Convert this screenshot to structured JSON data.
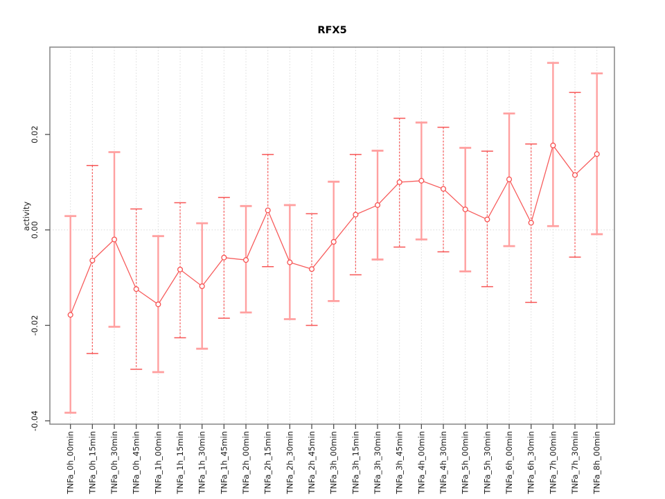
{
  "chart_data": {
    "type": "line",
    "title": "RFX5",
    "ylabel": "activity",
    "xlabel": "",
    "legend_position": "none",
    "grid": "dotted vertical line at every category; dotted horizontal line at y=0",
    "ylim": [
      -0.0407,
      0.0383
    ],
    "yticks": [
      0.02,
      0.0,
      -0.02,
      -0.04
    ],
    "ytick_labels": [
      "0.02",
      "0.00",
      "-0.02",
      "-0.04"
    ],
    "categories": [
      "TNFa_0h_00min",
      "TNFa_0h_15min",
      "TNFa_0h_30min",
      "TNFa_0h_45min",
      "TNFa_1h_00min",
      "TNFa_1h_15min",
      "TNFa_1h_30min",
      "TNFa_1h_45min",
      "TNFa_2h_00min",
      "TNFa_2h_15min",
      "TNFa_2h_30min",
      "TNFa_2h_45min",
      "TNFa_3h_00min",
      "TNFa_3h_15min",
      "TNFa_3h_30min",
      "TNFa_3h_45min",
      "TNFa_4h_00min",
      "TNFa_4h_30min",
      "TNFa_5h_00min",
      "TNFa_5h_30min",
      "TNFa_6h_00min",
      "TNFa_6h_30min",
      "TNFa_7h_00min",
      "TNFa_7h_30min",
      "TNFa_8h_00min"
    ],
    "series": [
      {
        "name": "RFX5 activity",
        "marker": "open-circle",
        "values": [
          -0.0178,
          -0.0064,
          -0.002,
          -0.0124,
          -0.0156,
          -0.0083,
          -0.0118,
          -0.0058,
          -0.0063,
          0.0041,
          -0.0068,
          -0.0082,
          -0.0025,
          0.0032,
          0.0052,
          0.01,
          0.0103,
          0.0086,
          0.0043,
          0.0022,
          0.0106,
          0.0015,
          0.0177,
          0.0115,
          0.0159
        ],
        "error_lower": [
          -0.0383,
          -0.0259,
          -0.0203,
          -0.0292,
          -0.0298,
          -0.0226,
          -0.0249,
          -0.0185,
          -0.0173,
          -0.0077,
          -0.0187,
          -0.02,
          -0.0149,
          -0.0094,
          -0.0062,
          -0.0036,
          -0.002,
          -0.0046,
          -0.0087,
          -0.0119,
          -0.0034,
          -0.0152,
          0.0008,
          -0.0057,
          -0.0009
        ],
        "error_upper": [
          0.0029,
          0.0135,
          0.0163,
          0.0044,
          -0.0013,
          0.0057,
          0.0014,
          0.0068,
          0.005,
          0.0158,
          0.0052,
          0.0034,
          0.0101,
          0.0158,
          0.0166,
          0.0234,
          0.0225,
          0.0215,
          0.0172,
          0.0165,
          0.0244,
          0.018,
          0.035,
          0.0288,
          0.0328
        ]
      }
    ],
    "colors": {
      "series_line": "#f75c5c",
      "marker_stroke": "#f75050",
      "errorbar_solid": "#ffa0a0",
      "errorbar_dashed": "#f75555",
      "gridline": "#d9d9d9",
      "axis_box": "#8c8c8c",
      "tick": "#4d4d4d",
      "text": "#1a1a1a",
      "background": "#ffffff"
    }
  }
}
